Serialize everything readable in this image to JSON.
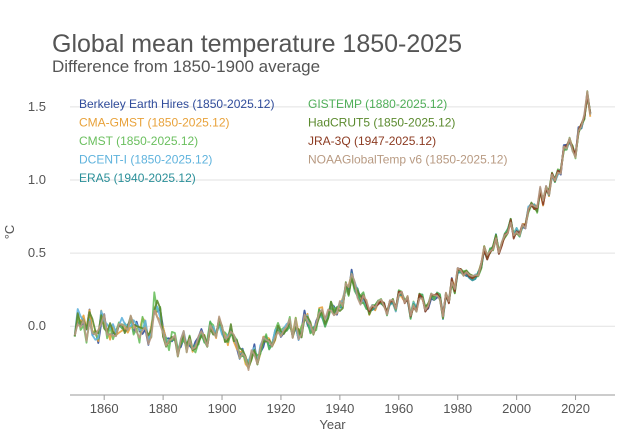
{
  "chart_data": {
    "type": "line",
    "title": "Global mean temperature 1850-2025",
    "subtitle": "Difference from 1850-1900 average",
    "xlabel": "Year",
    "ylabel": "°C",
    "xlim": [
      1845,
      2030
    ],
    "ylim": [
      -0.45,
      1.65
    ],
    "xticks": [
      1860,
      1880,
      1900,
      1920,
      1940,
      1960,
      1980,
      2000,
      2020
    ],
    "yticks": [
      0.0,
      0.5,
      1.0,
      1.5
    ],
    "ytick_labels": [
      "0.0",
      "0.5",
      "1.0",
      "1.5"
    ],
    "grid": "horizontal",
    "legend": "top-left",
    "anchors": {
      "years": [
        1850,
        1855,
        1860,
        1865,
        1870,
        1875,
        1878,
        1880,
        1885,
        1890,
        1895,
        1900,
        1905,
        1910,
        1915,
        1920,
        1925,
        1930,
        1935,
        1940,
        1944,
        1945,
        1950,
        1955,
        1960,
        1965,
        1970,
        1975,
        1980,
        1985,
        1990,
        1995,
        1998,
        2000,
        2005,
        2010,
        2015,
        2016,
        2020,
        2023,
        2024,
        2025
      ],
      "values": [
        0.0,
        0.02,
        -0.02,
        -0.05,
        0.02,
        -0.06,
        0.17,
        -0.03,
        -0.12,
        -0.12,
        -0.06,
        -0.02,
        -0.12,
        -0.22,
        -0.12,
        -0.05,
        -0.03,
        0.03,
        0.06,
        0.16,
        0.33,
        0.25,
        0.15,
        0.11,
        0.19,
        0.11,
        0.17,
        0.13,
        0.32,
        0.37,
        0.53,
        0.56,
        0.72,
        0.63,
        0.8,
        0.93,
        1.06,
        1.25,
        1.24,
        1.42,
        1.55,
        1.45
      ]
    },
    "series": [
      {
        "name": "Berkeley Earth Hires (1850-2025.12)",
        "color": "#2f4b9a",
        "start": 1850,
        "end": 2025,
        "seed": 11,
        "noise": 0.08
      },
      {
        "name": "CMA-GMST (1850-2025.12)",
        "color": "#e8a23b",
        "start": 1850,
        "end": 2025,
        "seed": 23,
        "noise": 0.08
      },
      {
        "name": "CMST (1850-2025.12)",
        "color": "#6abf5e",
        "start": 1850,
        "end": 2025,
        "seed": 37,
        "noise": 0.09
      },
      {
        "name": "DCENT-I (1850-2025.12)",
        "color": "#5fb3dd",
        "start": 1850,
        "end": 2025,
        "seed": 41,
        "noise": 0.07
      },
      {
        "name": "ERA5 (1940-2025.12)",
        "color": "#2a8f99",
        "start": 1940,
        "end": 2025,
        "seed": 53,
        "noise": 0.06
      },
      {
        "name": "GISTEMP (1880-2025.12)",
        "color": "#4fae58",
        "start": 1880,
        "end": 2025,
        "seed": 67,
        "noise": 0.07
      },
      {
        "name": "HadCRUT5 (1850-2025.12)",
        "color": "#5b8a2e",
        "start": 1850,
        "end": 2025,
        "seed": 71,
        "noise": 0.08
      },
      {
        "name": "JRA-3Q (1947-2025.12)",
        "color": "#8c3b22",
        "start": 1947,
        "end": 2025,
        "seed": 83,
        "noise": 0.06
      },
      {
        "name": "NOAAGlobalTemp v6 (1850-2025.12)",
        "color": "#b89a82",
        "start": 1850,
        "end": 2025,
        "seed": 97,
        "noise": 0.07
      }
    ]
  }
}
